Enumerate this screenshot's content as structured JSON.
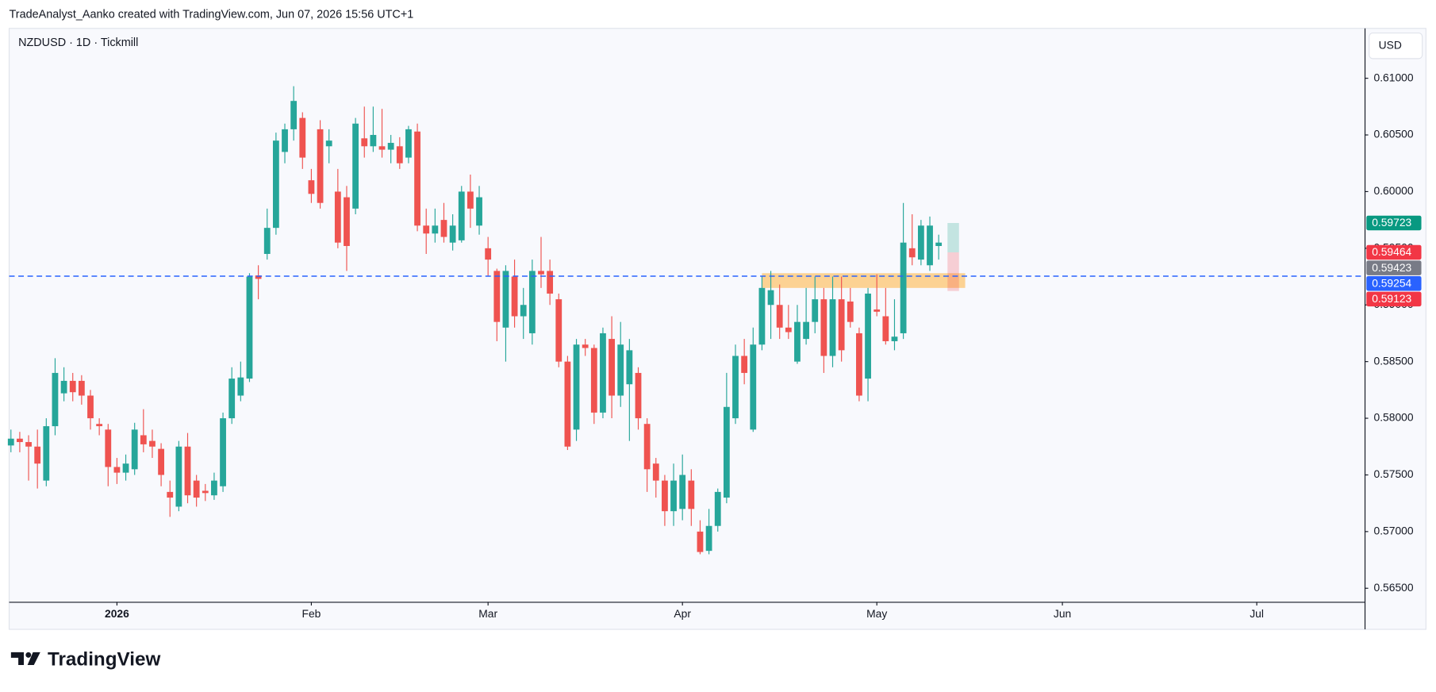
{
  "header": {
    "text": "TradeAnalyst_Aanko created with TradingView.com, Jun 07, 2026 15:56 UTC+1"
  },
  "footer": {
    "logo": "TradingView"
  },
  "chart_data": {
    "type": "candlestick",
    "symbol": "NZDUSD · 1D · Tickmill",
    "currency": "USD",
    "up_color": "#26a69a",
    "down_color": "#ef5350",
    "open": [
      0.5776,
      0.5782,
      0.5779,
      0.5775,
      0.5745,
      0.5793,
      0.5822,
      0.5833,
      0.5833,
      0.582,
      0.5795,
      0.579,
      0.5757,
      0.5752,
      0.5755,
      0.5785,
      0.578,
      0.5773,
      0.5735,
      0.5722,
      0.5775,
      0.5745,
      0.5736,
      0.5732,
      0.574,
      0.58,
      0.582,
      0.5835,
      0.5926,
      0.5945,
      0.5968,
      0.6035,
      0.6055,
      0.6065,
      0.601,
      0.6055,
      0.604,
      0.6,
      0.5995,
      0.5985,
      0.6047,
      0.604,
      0.604,
      0.6037,
      0.604,
      0.603,
      0.6053,
      0.597,
      0.5963,
      0.5975,
      0.5955,
      0.5957,
      0.6,
      0.597,
      0.595,
      0.593,
      0.588,
      0.5925,
      0.589,
      0.5875,
      0.593,
      0.593,
      0.5905,
      0.585,
      0.579,
      0.5865,
      0.5862,
      0.5805,
      0.587,
      0.582,
      0.583,
      0.584,
      0.5795,
      0.576,
      0.5745,
      0.5718,
      0.572,
      0.5745,
      0.57,
      0.5683,
      0.5705,
      0.573,
      0.58,
      0.5855,
      0.579,
      0.5865,
      0.59,
      0.59,
      0.588,
      0.585,
      0.587,
      0.5885,
      0.5905,
      0.5855,
      0.5905,
      0.5903,
      0.5875,
      0.5835,
      0.5896,
      0.589,
      0.5868,
      0.5875,
      0.595,
      0.594,
      0.5935,
      0.5952
    ],
    "high": [
      0.579,
      0.5788,
      0.5785,
      0.579,
      0.58,
      0.5853,
      0.5845,
      0.584,
      0.5838,
      0.5825,
      0.58,
      0.5795,
      0.5765,
      0.5768,
      0.5796,
      0.5808,
      0.579,
      0.5778,
      0.5745,
      0.578,
      0.5787,
      0.575,
      0.5742,
      0.5752,
      0.5805,
      0.5845,
      0.585,
      0.5928,
      0.5935,
      0.5985,
      0.6052,
      0.606,
      0.6093,
      0.607,
      0.602,
      0.6063,
      0.6055,
      0.602,
      0.6005,
      0.6065,
      0.6075,
      0.6075,
      0.6073,
      0.605,
      0.6048,
      0.6058,
      0.606,
      0.5985,
      0.5985,
      0.599,
      0.598,
      0.6005,
      0.6015,
      0.6005,
      0.596,
      0.5932,
      0.5935,
      0.594,
      0.5915,
      0.594,
      0.596,
      0.594,
      0.591,
      0.5855,
      0.587,
      0.587,
      0.5865,
      0.588,
      0.589,
      0.5885,
      0.587,
      0.5845,
      0.58,
      0.5765,
      0.575,
      0.576,
      0.5768,
      0.5755,
      0.571,
      0.572,
      0.5738,
      0.584,
      0.5865,
      0.587,
      0.588,
      0.5925,
      0.593,
      0.5918,
      0.59,
      0.59,
      0.5915,
      0.5925,
      0.5915,
      0.5925,
      0.5925,
      0.5915,
      0.588,
      0.5915,
      0.5927,
      0.5915,
      0.5905,
      0.599,
      0.598,
      0.5975,
      0.5978,
      0.5962
    ],
    "low": [
      0.577,
      0.577,
      0.5745,
      0.5738,
      0.574,
      0.5785,
      0.5815,
      0.5815,
      0.5812,
      0.579,
      0.5785,
      0.574,
      0.5742,
      0.5745,
      0.575,
      0.577,
      0.5765,
      0.574,
      0.5713,
      0.5718,
      0.5725,
      0.5722,
      0.5727,
      0.5728,
      0.5735,
      0.5795,
      0.5815,
      0.5832,
      0.5905,
      0.594,
      0.5962,
      0.6025,
      0.6045,
      0.602,
      0.599,
      0.5985,
      0.6025,
      0.595,
      0.593,
      0.598,
      0.603,
      0.6035,
      0.603,
      0.6025,
      0.602,
      0.6025,
      0.5965,
      0.5945,
      0.5955,
      0.5955,
      0.5948,
      0.5955,
      0.5968,
      0.5962,
      0.5925,
      0.5868,
      0.585,
      0.588,
      0.587,
      0.5865,
      0.5915,
      0.59,
      0.5845,
      0.5772,
      0.578,
      0.5855,
      0.5795,
      0.58,
      0.58,
      0.581,
      0.578,
      0.579,
      0.5735,
      0.573,
      0.5705,
      0.5705,
      0.571,
      0.5705,
      0.568,
      0.568,
      0.57,
      0.5725,
      0.5795,
      0.583,
      0.5788,
      0.586,
      0.587,
      0.587,
      0.587,
      0.5848,
      0.5865,
      0.5875,
      0.584,
      0.5845,
      0.585,
      0.588,
      0.5815,
      0.5815,
      0.589,
      0.5865,
      0.586,
      0.587,
      0.5935,
      0.5935,
      0.593,
      0.594
    ],
    "close": [
      0.5782,
      0.5779,
      0.5775,
      0.576,
      0.5793,
      0.584,
      0.5833,
      0.5823,
      0.582,
      0.58,
      0.5793,
      0.5757,
      0.5752,
      0.576,
      0.579,
      0.5777,
      0.5775,
      0.575,
      0.573,
      0.5775,
      0.5732,
      0.573,
      0.5734,
      0.5745,
      0.58,
      0.5835,
      0.5836,
      0.5925,
      0.5923,
      0.5968,
      0.6045,
      0.6055,
      0.608,
      0.603,
      0.5998,
      0.599,
      0.6045,
      0.5955,
      0.5952,
      0.606,
      0.604,
      0.605,
      0.6037,
      0.6043,
      0.6025,
      0.6055,
      0.597,
      0.5963,
      0.597,
      0.596,
      0.597,
      0.6,
      0.5985,
      0.5995,
      0.594,
      0.5885,
      0.593,
      0.589,
      0.59,
      0.593,
      0.5927,
      0.591,
      0.585,
      0.5775,
      0.5865,
      0.5862,
      0.5805,
      0.5875,
      0.582,
      0.5865,
      0.586,
      0.58,
      0.5755,
      0.5745,
      0.5718,
      0.5745,
      0.575,
      0.572,
      0.5682,
      0.5705,
      0.5735,
      0.581,
      0.5855,
      0.584,
      0.5865,
      0.5915,
      0.5913,
      0.588,
      0.5876,
      0.5885,
      0.5885,
      0.5905,
      0.5855,
      0.5905,
      0.586,
      0.5885,
      0.582,
      0.591,
      0.5894,
      0.5868,
      0.5872,
      0.5955,
      0.5942,
      0.597,
      0.597,
      0.5955
    ],
    "xlim": [
      -0.2,
      153.2
    ],
    "xticks": [
      {
        "value": 12,
        "label": "2026"
      },
      {
        "value": 34,
        "label": "Feb"
      },
      {
        "value": 54,
        "label": "Mar"
      },
      {
        "value": 76,
        "label": "Apr"
      },
      {
        "value": 98,
        "label": "May"
      },
      {
        "value": 119,
        "label": "Jun"
      },
      {
        "value": 141,
        "label": "Jul"
      }
    ],
    "ylim": [
      0.5638,
      0.6144
    ],
    "yticks": [
      {
        "value": 0.61,
        "label": "0.61000"
      },
      {
        "value": 0.605,
        "label": "0.60500"
      },
      {
        "value": 0.6,
        "label": "0.60000"
      },
      {
        "value": 0.595,
        "label": "0.59500"
      },
      {
        "value": 0.59,
        "label": "0.59000"
      },
      {
        "value": 0.585,
        "label": "0.58500"
      },
      {
        "value": 0.58,
        "label": "0.58000"
      },
      {
        "value": 0.575,
        "label": "0.57500"
      },
      {
        "value": 0.57,
        "label": "0.57000"
      },
      {
        "value": 0.565,
        "label": "0.56500"
      }
    ],
    "hline": {
      "value": 0.59254,
      "label": "0.59254",
      "color": "#2962ff"
    },
    "last_price": {
      "value": 0.59423,
      "label": "0.59423",
      "color": "#787b86"
    },
    "zone": {
      "from": 85,
      "to": 108,
      "low": 0.5915,
      "high": 0.5928,
      "color": "#ffb74d"
    },
    "position": {
      "from": 106,
      "to": 107.3,
      "target": {
        "value": 0.59723,
        "label": "0.59723",
        "color": "#089981"
      },
      "entry": {
        "value": 0.59464,
        "label": "0.59464",
        "color": "#f23645"
      },
      "stop": {
        "value": 0.59123,
        "label": "0.59123",
        "color": "#f23645"
      }
    }
  }
}
